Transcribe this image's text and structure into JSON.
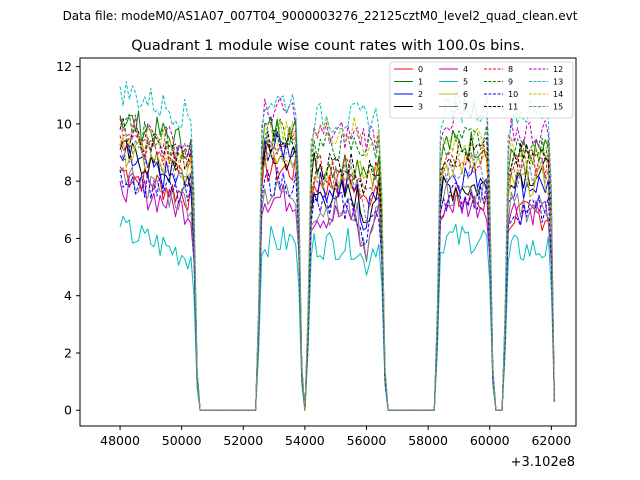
{
  "suptitle": "Data file: modeM0/AS1A07_007T04_9000003276_22125cztM0_level2_quad_clean.evt",
  "chart_data": {
    "type": "line",
    "title": "Quadrant 1 module wise count rates with 100.0s bins.",
    "xlabel": "",
    "ylabel": "",
    "x_offset_label": "+3.102e8",
    "xlim": [
      46700,
      62800
    ],
    "ylim": [
      -0.55,
      12.3
    ],
    "xticks": [
      48000,
      50000,
      52000,
      54000,
      56000,
      58000,
      60000,
      62000
    ],
    "yticks": [
      0,
      2,
      4,
      6,
      8,
      10,
      12
    ],
    "grid": false,
    "legend_position": "top-right",
    "segments": [
      [
        48000,
        50400
      ],
      [
        52600,
        53800
      ],
      [
        54200,
        56500
      ],
      [
        58400,
        60000
      ],
      [
        60600,
        62000
      ]
    ],
    "series": [
      {
        "name": "0",
        "color": "#ff0000",
        "dash": "solid",
        "segment_levels": [
          7.4,
          8.4,
          7.9,
          7.3,
          6.8
        ],
        "spike": 1
      },
      {
        "name": "1",
        "color": "#008000",
        "dash": "solid",
        "segment_levels": [
          9.2,
          9.8,
          8.6,
          9.3,
          9.0
        ],
        "spike": 0
      },
      {
        "name": "2",
        "color": "#0000ff",
        "dash": "solid",
        "segment_levels": [
          7.8,
          9.2,
          7.8,
          8.2,
          7.9
        ],
        "spike": 2
      },
      {
        "name": "3",
        "color": "#000000",
        "dash": "solid",
        "segment_levels": [
          8.0,
          8.8,
          7.5,
          7.8,
          8.3
        ],
        "spike": 1
      },
      {
        "name": "4",
        "color": "#bf00bf",
        "dash": "solid",
        "segment_levels": [
          6.9,
          7.4,
          6.8,
          7.2,
          7.0
        ],
        "spike": 2
      },
      {
        "name": "5",
        "color": "#00bfbf",
        "dash": "solid",
        "segment_levels": [
          5.3,
          5.9,
          5.8,
          6.0,
          5.6
        ],
        "spike": 1
      },
      {
        "name": "6",
        "color": "#bfbf00",
        "dash": "solid",
        "segment_levels": [
          8.1,
          9.0,
          8.2,
          8.6,
          8.0
        ],
        "spike": 0
      },
      {
        "name": "7",
        "color": "#808080",
        "dash": "solid",
        "segment_levels": [
          7.2,
          7.6,
          7.0,
          7.5,
          7.1
        ],
        "spike": 2
      },
      {
        "name": "8",
        "color": "#ff0000",
        "dash": "dashed",
        "segment_levels": [
          8.5,
          9.3,
          8.4,
          8.8,
          8.6
        ],
        "spike": 1
      },
      {
        "name": "9",
        "color": "#008000",
        "dash": "dashed",
        "segment_levels": [
          9.0,
          9.8,
          9.2,
          9.4,
          9.0
        ],
        "spike": 0
      },
      {
        "name": "10",
        "color": "#0000ff",
        "dash": "dashed",
        "segment_levels": [
          7.3,
          8.0,
          7.1,
          7.5,
          7.0
        ],
        "spike": 2
      },
      {
        "name": "11",
        "color": "#000000",
        "dash": "dashed",
        "segment_levels": [
          8.7,
          9.3,
          8.6,
          9.0,
          8.8
        ],
        "spike": 1
      },
      {
        "name": "12",
        "color": "#bf00bf",
        "dash": "dashed",
        "segment_levels": [
          9.1,
          10.4,
          9.6,
          10.2,
          9.7
        ],
        "spike": 0
      },
      {
        "name": "13",
        "color": "#00bfbf",
        "dash": "dashed",
        "segment_levels": [
          10.2,
          10.8,
          10.2,
          10.6,
          10.4
        ],
        "spike": 0
      },
      {
        "name": "14",
        "color": "#bfbf00",
        "dash": "dashed",
        "segment_levels": [
          8.9,
          9.6,
          9.8,
          9.3,
          9.0
        ],
        "spike": 1
      },
      {
        "name": "15",
        "color": "#808080",
        "dash": "dashed",
        "segment_levels": [
          8.2,
          8.9,
          8.1,
          8.5,
          8.3
        ],
        "spike": 2
      }
    ]
  }
}
